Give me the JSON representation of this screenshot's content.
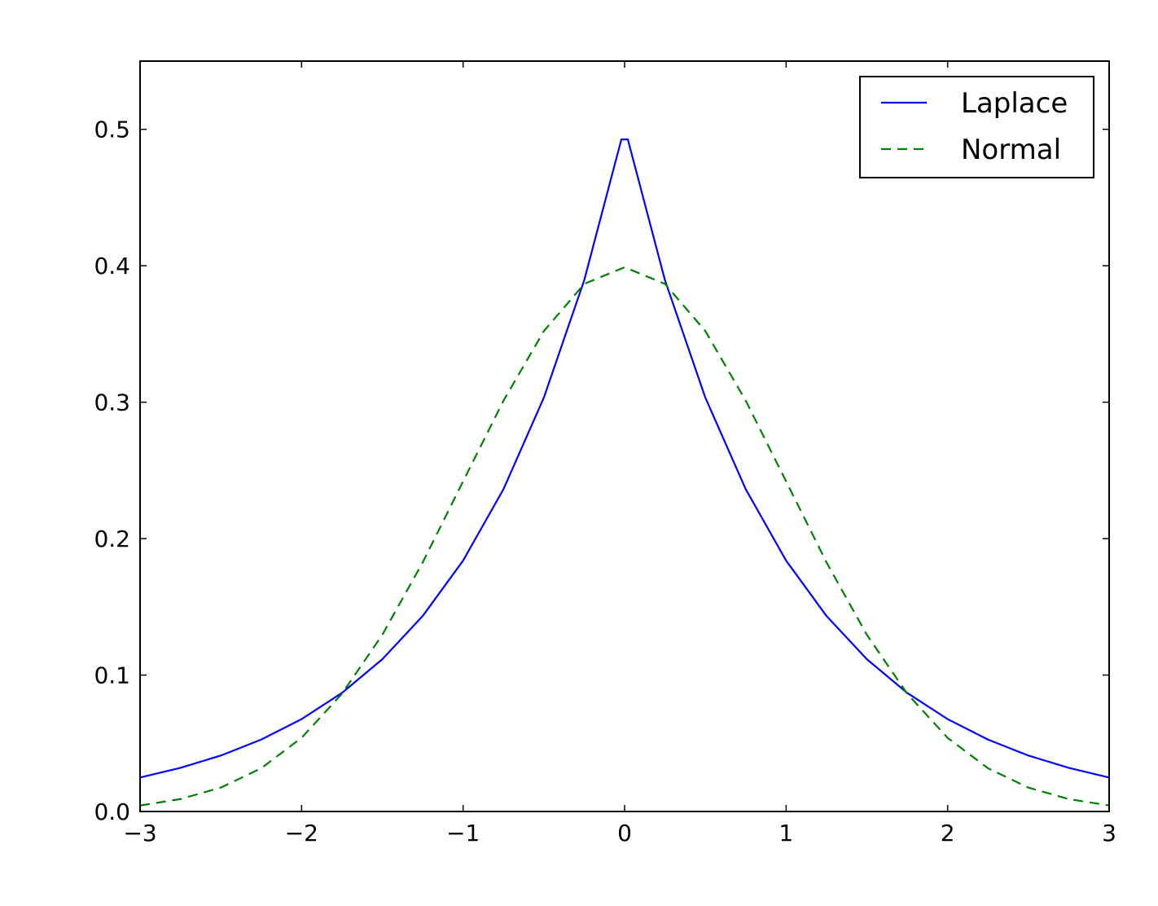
{
  "chart_data": {
    "type": "line",
    "title": "",
    "xlabel": "",
    "ylabel": "",
    "xlim": [
      -3,
      3
    ],
    "ylim": [
      0,
      0.55
    ],
    "x_ticks": [
      -3,
      -2,
      -1,
      0,
      1,
      2,
      3
    ],
    "x_tick_labels": [
      "−3",
      "−2",
      "−1",
      "0",
      "1",
      "2",
      "3"
    ],
    "y_ticks": [
      0.0,
      0.1,
      0.2,
      0.3,
      0.4,
      0.5
    ],
    "y_tick_labels": [
      "0.0",
      "0.1",
      "0.2",
      "0.3",
      "0.4",
      "0.5"
    ],
    "grid": false,
    "legend_position": "top-right",
    "series": [
      {
        "name": "Laplace",
        "color": "#0000ff",
        "style": "solid",
        "x": [
          -3.0,
          -2.75,
          -2.5,
          -2.25,
          -2.0,
          -1.75,
          -1.5,
          -1.25,
          -1.0,
          -0.75,
          -0.5,
          -0.25,
          -0.02,
          0.02,
          0.25,
          0.5,
          0.75,
          1.0,
          1.25,
          1.5,
          1.75,
          2.0,
          2.25,
          2.5,
          2.75,
          3.0
        ],
        "y": [
          0.0249,
          0.032,
          0.041,
          0.0527,
          0.0677,
          0.0869,
          0.1116,
          0.1433,
          0.1839,
          0.2362,
          0.3033,
          0.3894,
          0.4926,
          0.4926,
          0.3894,
          0.3033,
          0.2362,
          0.1839,
          0.1433,
          0.1116,
          0.0869,
          0.0677,
          0.0527,
          0.041,
          0.032,
          0.0249
        ]
      },
      {
        "name": "Normal",
        "color": "#008000",
        "style": "dashed",
        "x": [
          -3.0,
          -2.75,
          -2.5,
          -2.25,
          -2.0,
          -1.75,
          -1.5,
          -1.25,
          -1.0,
          -0.75,
          -0.5,
          -0.25,
          0.0,
          0.25,
          0.5,
          0.75,
          1.0,
          1.25,
          1.5,
          1.75,
          2.0,
          2.25,
          2.5,
          2.75,
          3.0
        ],
        "y": [
          0.0044,
          0.0091,
          0.0175,
          0.0317,
          0.054,
          0.0863,
          0.1295,
          0.1826,
          0.242,
          0.3011,
          0.3521,
          0.3867,
          0.3989,
          0.3867,
          0.3521,
          0.3011,
          0.242,
          0.1826,
          0.1295,
          0.0863,
          0.054,
          0.0317,
          0.0175,
          0.0091,
          0.0044
        ]
      }
    ]
  }
}
